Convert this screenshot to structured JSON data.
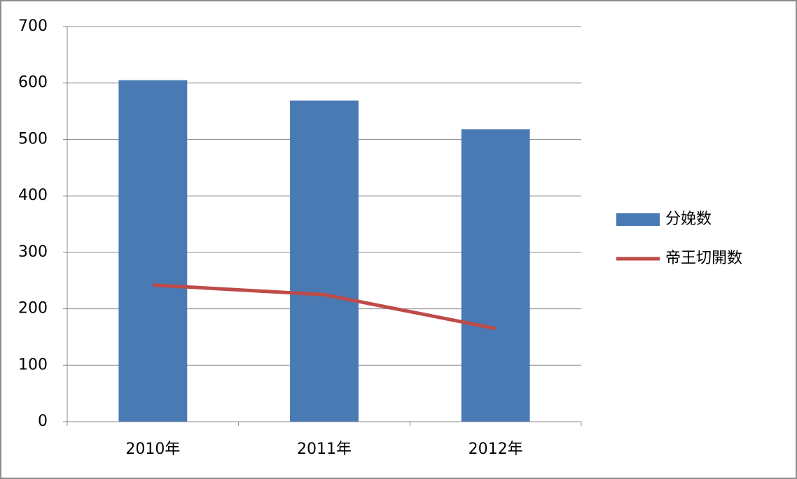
{
  "chart_data": {
    "type": "bar",
    "categories": [
      "2010年",
      "2011年",
      "2012年"
    ],
    "series": [
      {
        "name": "分娩数",
        "type": "bar",
        "color": "#4a7ab4",
        "values": [
          605,
          569,
          518
        ]
      },
      {
        "name": "帝王切開数",
        "type": "line",
        "color": "#be4b48",
        "values": [
          242,
          225,
          165
        ]
      }
    ],
    "ylim": [
      0,
      700
    ],
    "yticks": [
      0,
      100,
      200,
      300,
      400,
      500,
      600,
      700
    ],
    "grid": true,
    "legend": "right"
  }
}
